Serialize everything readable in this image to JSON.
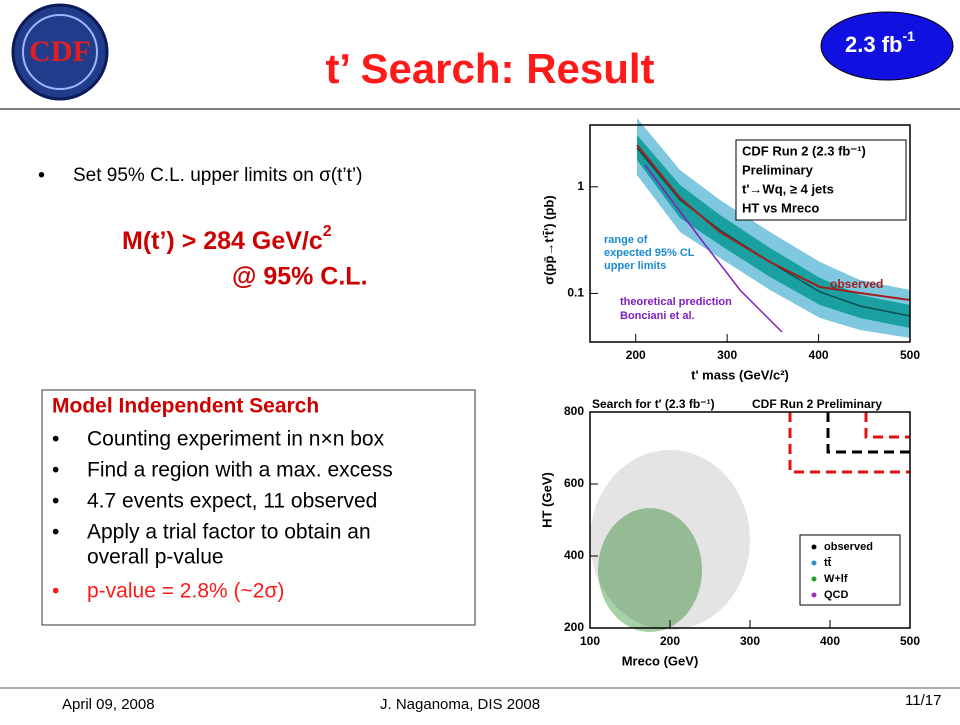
{
  "header": {
    "title": "t’ Search: Result",
    "logo": "CDF",
    "badge": {
      "text": "2.3 fb",
      "sup": "-1"
    }
  },
  "bullets": [
    "Set 95% C.L. upper limits on σ(t’t’)"
  ],
  "result": {
    "line1": "M(t’) > 284 GeV/c",
    "sup": "2",
    "line2": "@ 95% C.L."
  },
  "box": {
    "title": "Model Independent Search",
    "items": [
      "Counting experiment in n×n box",
      "Find a region with a max. excess",
      "4.7 events expect, 11 observed",
      "Apply a trial factor to obtain an",
      "overall p-value"
    ],
    "highlight": "p-value = 2.8% (~2σ)"
  },
  "plots": [
    {
      "xlabel": "t' mass (GeV/c²)",
      "ylabel": "σ(pp̄→t't̄') (pb)",
      "log": true,
      "xlim": [
        150,
        500
      ],
      "ylim": [
        0.035,
        3.8
      ],
      "xticks": [
        200,
        300,
        400,
        500
      ],
      "yticks": [
        {
          "value": 0.1,
          "label": "0.1"
        },
        1
      ],
      "legend": [
        "CDF Run 2 (2.3 fb⁻¹)",
        "Preliminary",
        "t'→Wq, ≥ 4 jets",
        "HT vs Mreco"
      ],
      "band_label": [
        "range of",
        "expected 95% CL",
        "upper limits"
      ],
      "observed_label": "observed",
      "theory_label": [
        "theoretical prediction",
        "Bonciani et al."
      ]
    },
    {
      "title": "Search for t′ (2.3 fb⁻¹)",
      "subtitle": "CDF Run 2 Preliminary",
      "xlabel": "Mreco (GeV)",
      "ylabel": "HT (GeV)",
      "log": false,
      "xlim": [
        100,
        500
      ],
      "ylim": [
        200,
        800
      ],
      "xticks": [
        100,
        200,
        300,
        400,
        500
      ],
      "yticks": [
        200,
        400,
        600,
        800
      ],
      "legend": [
        "observed",
        "tt̄",
        "W+lf",
        "QCD"
      ]
    }
  ],
  "footer": {
    "date": "April 09, 2008",
    "author": "J. Naganoma, DIS 2008",
    "page": "11/17"
  }
}
